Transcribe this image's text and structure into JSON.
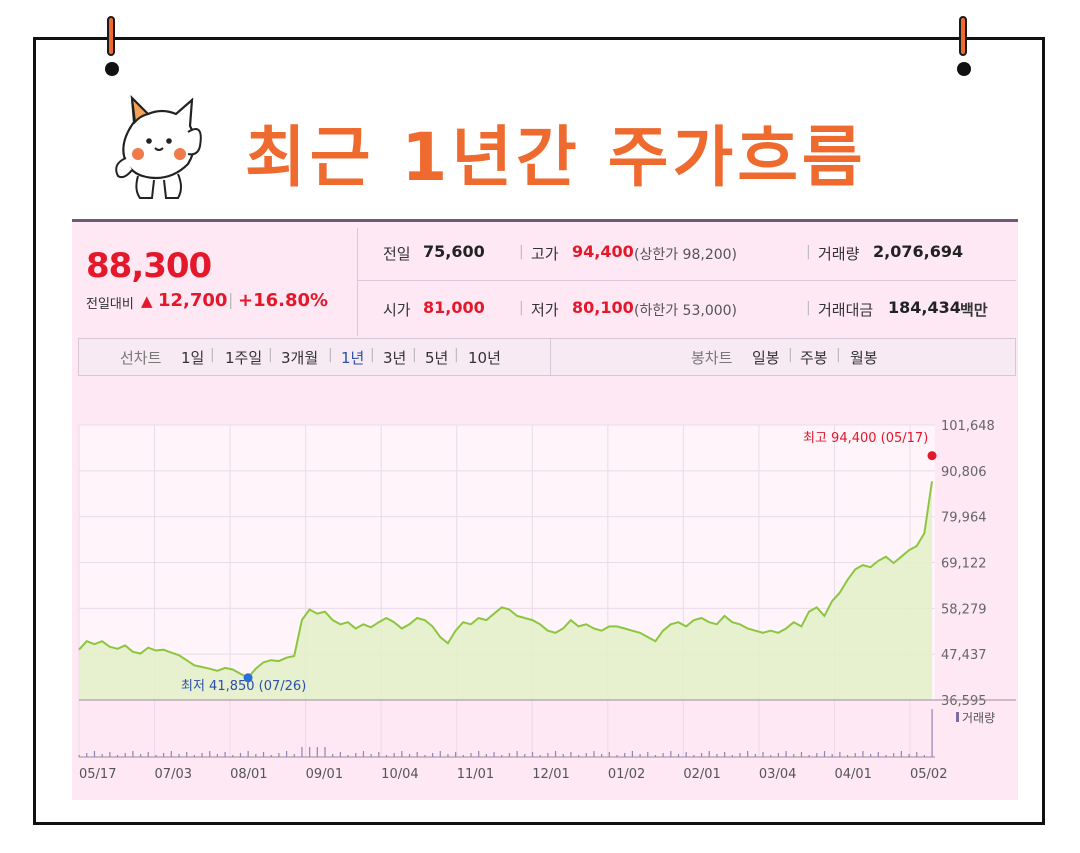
{
  "header": {
    "title": "최근 1년간 주가흐름"
  },
  "quote": {
    "price": "88,300",
    "change_label": "전일대비",
    "change_symbol": "▲",
    "change_value": "12,700",
    "change_sep": "|",
    "change_pct": "+16.80%",
    "prev_close_label": "전일",
    "prev_close": "75,600",
    "high_label": "고가",
    "high": "94,400",
    "upper_limit": "(상한가 98,200)",
    "volume_label": "거래량",
    "volume": "2,076,694",
    "open_label": "시가",
    "open": "81,000",
    "low_label": "저가",
    "low": "80,100",
    "lower_limit": "(하한가 53,000)",
    "amount_label": "거래대금",
    "amount": "184,434",
    "amount_unit": "백만"
  },
  "period_tabs": {
    "line_label": "선차트",
    "line_items": [
      "1일",
      "1주일",
      "3개월",
      "1년",
      "3년",
      "5년",
      "10년"
    ],
    "active": "1년",
    "candle_label": "봉차트",
    "candle_items": [
      "일봉",
      "주봉",
      "월봉"
    ]
  },
  "colors": {
    "accent": "#ef6a2e",
    "up": "#e4182a",
    "down": "#2b4fa8",
    "line": "#8cc63f",
    "panel": "#fde8f3"
  },
  "chart_data": {
    "type": "area",
    "title": "",
    "x_ticks": [
      "05/17",
      "07/03",
      "08/01",
      "09/01",
      "10/04",
      "11/01",
      "12/01",
      "01/02",
      "02/01",
      "03/04",
      "04/01",
      "05/02"
    ],
    "y_ticks": [
      101648,
      90806,
      79964,
      69122,
      58279,
      47437,
      36595
    ],
    "y_tick_labels": [
      "101,648",
      "90,806",
      "79,964",
      "69,122",
      "58,279",
      "47,437",
      "36,595"
    ],
    "ylim": [
      36595,
      101648
    ],
    "series": [
      {
        "values": [
          48500,
          50500,
          49800,
          50500,
          49200,
          48700,
          49500,
          48000,
          47600,
          49000,
          48300,
          48500,
          47800,
          47200,
          46000,
          44800,
          44400,
          44000,
          43500,
          44200,
          43800,
          42800,
          41850,
          44000,
          45500,
          46000,
          45800,
          46600,
          47000,
          55500,
          58000,
          57000,
          57500,
          55500,
          54500,
          55000,
          53500,
          54500,
          53800,
          55000,
          56000,
          55000,
          53500,
          54500,
          56000,
          55500,
          54000,
          51500,
          50000,
          53000,
          55000,
          54500,
          56000,
          55500,
          57000,
          58500,
          58000,
          56500,
          56000,
          55500,
          54500,
          53000,
          52500,
          53500,
          55500,
          54000,
          54500,
          53500,
          53000,
          54000,
          54000,
          53500,
          53000,
          52500,
          51500,
          50500,
          53000,
          54500,
          55000,
          54000,
          55500,
          56000,
          55000,
          54500,
          56500,
          55000,
          54500,
          53500,
          53000,
          52500,
          53000,
          52500,
          53500,
          55000,
          54000,
          57500,
          58500,
          56500,
          60000,
          62000,
          65000,
          67500,
          68500,
          68000,
          69500,
          70500,
          69000,
          70500,
          72000,
          73000,
          76000,
          88300
        ]
      }
    ],
    "annotations": {
      "max": {
        "label": "최고 94,400 (05/17)",
        "value": 94400
      },
      "min": {
        "label": "최저 41,850 (07/26)",
        "value": 41850
      }
    },
    "volume_legend": "거래량",
    "grid": true
  }
}
